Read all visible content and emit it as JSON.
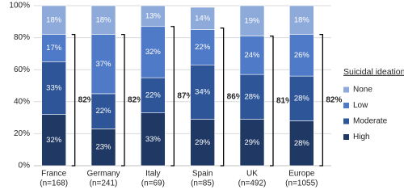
{
  "chart_data": {
    "type": "stacked-bar",
    "categories": [
      "France",
      "Germany",
      "Italy",
      "Spain",
      "UK",
      "Europe"
    ],
    "sample_sizes": [
      "(n=168)",
      "(n=241)",
      "(n=69)",
      "(n=85)",
      "(n=492)",
      "(n=1055)"
    ],
    "legend_title": "Suicidal ideation",
    "legend_position": "right",
    "series": [
      {
        "name": "High",
        "color": "#1f3864",
        "values": [
          32,
          23,
          33,
          29,
          29,
          28
        ],
        "value_labels": [
          "32%",
          "23%",
          "33%",
          "29%",
          "29%",
          "28%"
        ]
      },
      {
        "name": "Moderate",
        "color": "#2e5597",
        "values": [
          33,
          22,
          22,
          34,
          28,
          28
        ],
        "value_labels": [
          "33%",
          "22%",
          "22%",
          "34%",
          "28%",
          "28%"
        ]
      },
      {
        "name": "Low",
        "color": "#4f7ac7",
        "values": [
          17,
          37,
          32,
          22,
          24,
          26
        ],
        "value_labels": [
          "17%",
          "37%",
          "32%",
          "22%",
          "24%",
          "26%"
        ]
      },
      {
        "name": "None",
        "color": "#8eaadb",
        "values": [
          18,
          18,
          13,
          14,
          19,
          18
        ],
        "value_labels": [
          "18%",
          "18%",
          "13%",
          "14%",
          "19%",
          "18%"
        ]
      }
    ],
    "bracket_values": [
      82,
      82,
      87,
      86,
      81,
      82
    ],
    "bracket_labels": [
      "82%",
      "82%",
      "87%",
      "86%",
      "81%",
      "82%"
    ],
    "ylim": [
      0,
      100
    ],
    "yticks": [
      {
        "value": 0,
        "label": "0%"
      },
      {
        "value": 20,
        "label": "20%"
      },
      {
        "value": 40,
        "label": "40%"
      },
      {
        "value": 60,
        "label": "60%"
      },
      {
        "value": 80,
        "label": "80%"
      },
      {
        "value": 100,
        "label": "100%"
      }
    ],
    "grid": true
  }
}
